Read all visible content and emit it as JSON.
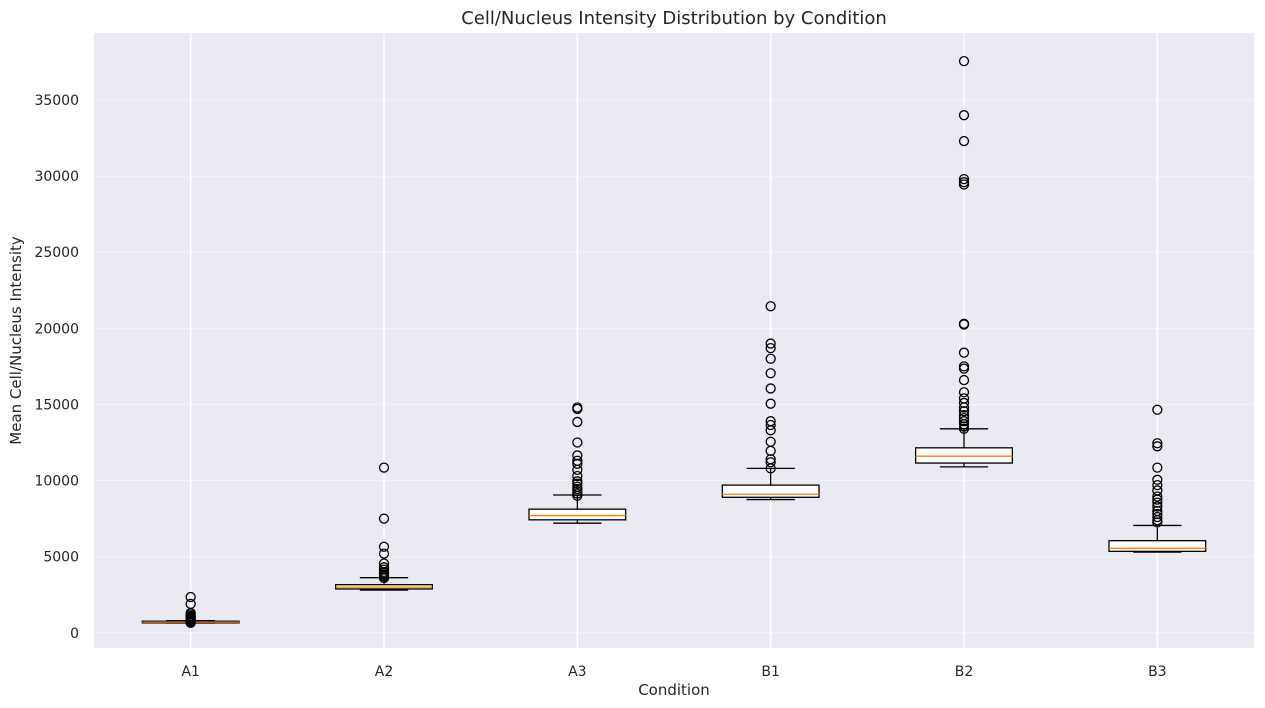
{
  "chart_data": {
    "type": "box",
    "title": "Cell/Nucleus Intensity Distribution by Condition",
    "xlabel": "Condition",
    "ylabel": "Mean Cell/Nucleus Intensity",
    "ylim": [
      -1000,
      39400
    ],
    "yticks": [
      0,
      5000,
      10000,
      15000,
      20000,
      25000,
      30000,
      35000
    ],
    "ytick_labels": [
      "0",
      "5000",
      "10000",
      "15000",
      "20000",
      "25000",
      "30000",
      "35000"
    ],
    "grid": true,
    "categories": [
      "A1",
      "A2",
      "A3",
      "B1",
      "B2",
      "B3"
    ],
    "boxes": [
      {
        "name": "A1",
        "whisker_low": 640,
        "q1": 650,
        "median": 700,
        "q3": 760,
        "whisker_high": 800,
        "outliers": [
          650,
          700,
          760,
          830,
          880,
          950,
          1000,
          1050,
          1100,
          1200,
          1300,
          1900,
          2350
        ]
      },
      {
        "name": "A2",
        "whisker_low": 2800,
        "q1": 2880,
        "median": 3000,
        "q3": 3160,
        "whisker_high": 3620,
        "outliers": [
          3600,
          3700,
          3800,
          3900,
          4000,
          4150,
          4300,
          4550,
          5200,
          5650,
          7500,
          10850
        ]
      },
      {
        "name": "A3",
        "whisker_low": 7200,
        "q1": 7420,
        "median": 7700,
        "q3": 8120,
        "whisker_high": 9050,
        "outliers": [
          9000,
          9150,
          9300,
          9450,
          9600,
          9800,
          9950,
          10300,
          10700,
          11100,
          11300,
          11650,
          12500,
          13850,
          14700,
          14800
        ]
      },
      {
        "name": "B1",
        "whisker_low": 8750,
        "q1": 8900,
        "median": 9100,
        "q3": 9700,
        "whisker_high": 10800,
        "outliers": [
          10800,
          11200,
          11400,
          11950,
          12550,
          13300,
          13650,
          13900,
          15050,
          16050,
          17050,
          18000,
          18700,
          19000,
          21450
        ]
      },
      {
        "name": "B2",
        "whisker_low": 10900,
        "q1": 11150,
        "median": 11600,
        "q3": 12150,
        "whisker_high": 13400,
        "outliers": [
          13400,
          13550,
          13700,
          13900,
          14100,
          14300,
          14550,
          14800,
          15100,
          15400,
          15800,
          16600,
          17350,
          17500,
          18400,
          20250,
          20300,
          29450,
          29600,
          29800,
          32300,
          34000,
          37550
        ]
      },
      {
        "name": "B3",
        "whisker_low": 5300,
        "q1": 5350,
        "median": 5550,
        "q3": 6050,
        "whisker_high": 7050,
        "outliers": [
          7250,
          7400,
          7600,
          7800,
          8000,
          8300,
          8550,
          8750,
          8950,
          9350,
          9700,
          10050,
          10850,
          12250,
          12450,
          14650
        ]
      }
    ],
    "colors": {
      "background": "#eaeaf2",
      "grid": "#ffffff",
      "box_edge": "#000000",
      "box_fill": "#ffffff",
      "median": "#ff7f0e",
      "text": "#262626"
    }
  }
}
